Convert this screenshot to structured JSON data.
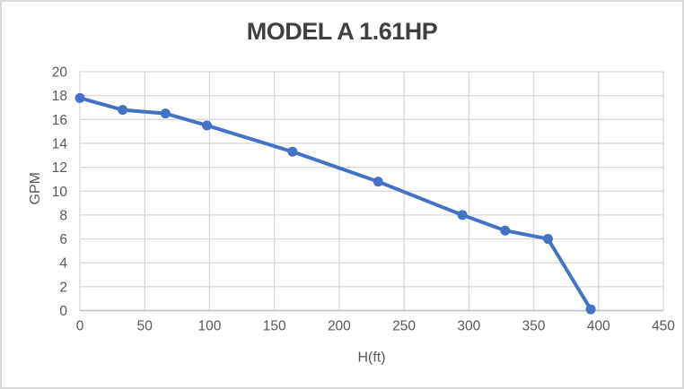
{
  "window": {
    "background": "#FFFFFF",
    "border_color": "#D9D9D9"
  },
  "chart_data": {
    "type": "line",
    "title": "MODEL A 1.61HP",
    "xlabel": "H(ft)",
    "ylabel": "GPM",
    "series": [
      {
        "name": "MODEL A 1.61HP",
        "x": [
          0,
          33,
          66,
          98,
          164,
          230,
          295,
          328,
          361,
          394
        ],
        "y": [
          17.8,
          16.8,
          16.5,
          15.5,
          13.3,
          10.8,
          8.0,
          6.7,
          6.0,
          0.1
        ]
      }
    ],
    "xlim": [
      0,
      450
    ],
    "ylim": [
      0,
      20
    ],
    "x_ticks": [
      0,
      50,
      100,
      150,
      200,
      250,
      300,
      350,
      400,
      450
    ],
    "y_ticks": [
      0,
      2,
      4,
      6,
      8,
      10,
      12,
      14,
      16,
      18,
      20
    ],
    "grid": true,
    "legend": false,
    "marker": "circle",
    "line_width": 4,
    "marker_radius": 5.5,
    "colors": {
      "series": "#4472C4",
      "gridline": "#D9D9D9",
      "axis_line": "#BFBFBF",
      "tick_label": "#595959",
      "axis_title": "#595959",
      "chart_title": "#404040"
    }
  }
}
